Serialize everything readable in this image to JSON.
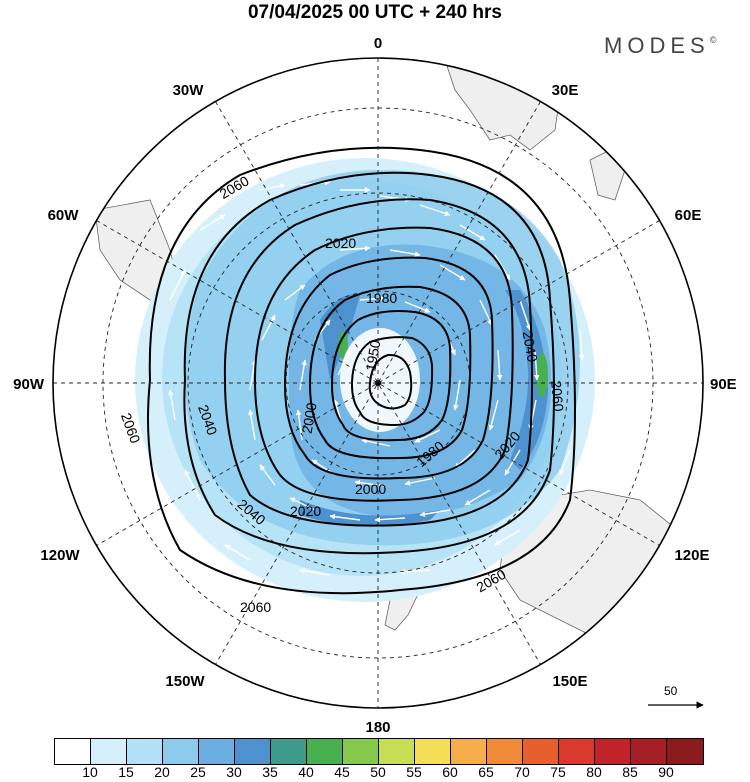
{
  "title": "07/04/2025  00 UTC  + 240 hrs",
  "brand": "MODES",
  "brand_mark": "©",
  "longitude_labels": {
    "n": "0",
    "ne30": "30E",
    "ne60": "60E",
    "e": "90E",
    "se120": "120E",
    "se150": "150E",
    "s": "180",
    "sw150": "150W",
    "sw120": "120W",
    "w": "90W",
    "nw60": "60W",
    "nw30": "30W"
  },
  "contour_labels": [
    "2060",
    "2020",
    "1980",
    "1950",
    "2040",
    "2060",
    "2000",
    "2040",
    "2060",
    "1980",
    "2020",
    "2000",
    "2020",
    "2040",
    "2060",
    "2060"
  ],
  "wind_scale": {
    "label": "50"
  },
  "colorbar": {
    "levels": [
      "10",
      "15",
      "20",
      "25",
      "30",
      "35",
      "40",
      "45",
      "50",
      "55",
      "60",
      "65",
      "70",
      "75",
      "80",
      "85",
      "90"
    ],
    "colors": [
      "#ffffff",
      "#d6f0fb",
      "#b4e1f6",
      "#8ccbee",
      "#6aaee2",
      "#4d91cf",
      "#3e9b8b",
      "#48b04f",
      "#86c84c",
      "#c7dd54",
      "#f6df58",
      "#f5ae49",
      "#f08a38",
      "#e75f2d",
      "#d93a2b",
      "#c0232a",
      "#a51f24",
      "#8c1b1e"
    ]
  }
}
